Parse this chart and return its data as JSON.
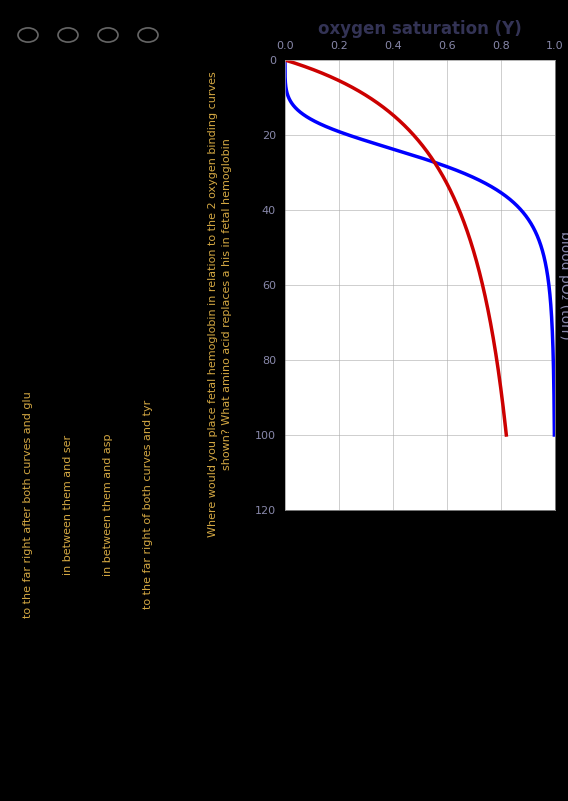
{
  "title": "oxygen saturation (Y)",
  "ylabel": "blood pO₂ (torr)",
  "ylim": [
    0,
    120
  ],
  "xlim": [
    0.0,
    1.0
  ],
  "yticks": [
    0,
    20,
    40,
    60,
    80,
    100,
    120
  ],
  "xticks": [
    0.0,
    0.2,
    0.4,
    0.6,
    0.8,
    1.0
  ],
  "blue_color": "#0000ff",
  "red_color": "#cc0000",
  "bg_color": "#000000",
  "text_color": "#d4a843",
  "plot_bg": "#ffffff",
  "grid_color": "#aaaaaa",
  "blue_n": 4.5,
  "blue_P50": 0.92,
  "red_n": 1.0,
  "red_P50": 0.06,
  "question_text_line1": "Where would you place fetal hemoglobin in relation to the 2 oxygen binding curves",
  "question_text_line2": "shown? What amino acid replaces a his in fetal hemoglobin",
  "options": [
    "to the far right of both curves and tyr",
    "in between them and asp",
    "in between them and ser",
    "to the far right after both curves and glu"
  ],
  "option_text_color": "#d4a843",
  "circle_color": "#666666",
  "tick_color": "#8888aa",
  "title_color": "#333355",
  "ylabel_color": "#8888aa",
  "title_fontsize": 12,
  "tick_fontsize": 8,
  "ylabel_fontsize": 10,
  "option_fontsize": 8,
  "question_fontsize": 8
}
